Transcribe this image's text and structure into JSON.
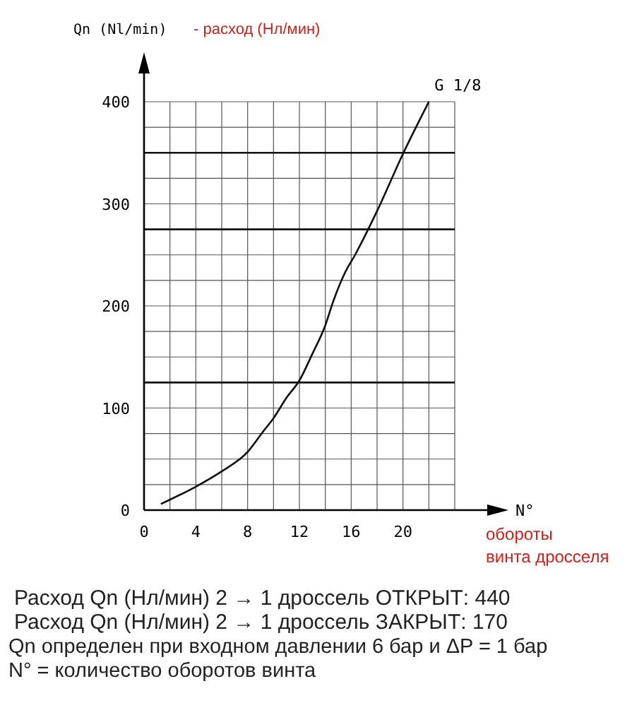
{
  "chart_data": {
    "type": "line",
    "ylabel": "Qn (Nl/min)",
    "xlabel": "N°",
    "annotations": [
      "- расход (Нл/мин)",
      "обороты винта дросселя",
      "Расход Qn (Нл/мин) 2 → 1 дроссель ОТКРЫТ: 440",
      "Расход Qn (Нл/мин) 2 → 1 дроссель ЗАКРЫТ: 170",
      "Qn определен при входном давлении 6 бар и ΔP = 1 бар",
      "N° = количество оборотов винта"
    ],
    "x": [
      1.3,
      4,
      6,
      8,
      9.2,
      10,
      11,
      12,
      13,
      14,
      14.6,
      15.5,
      16.3,
      18,
      20,
      22
    ],
    "series": [
      {
        "name": "G 1/8",
        "color": "#111111",
        "values": [
          6,
          23,
          38,
          57,
          77,
          90,
          110,
          127,
          153,
          181,
          204,
          232,
          250,
          293,
          349,
          400
        ]
      }
    ],
    "xlim": [
      0,
      24
    ],
    "ylim": [
      0,
      400
    ],
    "xticks": [
      0,
      {
        "value": 2,
        "label": null
      },
      4,
      {
        "value": 6,
        "label": null
      },
      8,
      {
        "value": 10,
        "label": null
      },
      12,
      {
        "value": 14,
        "label": null
      },
      16,
      {
        "value": 18,
        "label": null
      },
      20,
      {
        "value": 22,
        "label": null
      },
      {
        "value": 24,
        "label": null
      }
    ],
    "yticks": [
      0,
      {
        "value": 25,
        "label": null
      },
      {
        "value": 50,
        "label": null
      },
      {
        "value": 75,
        "label": null
      },
      100,
      {
        "value": 150,
        "label": null
      },
      {
        "value": 175,
        "label": null
      },
      200,
      {
        "value": 225,
        "label": null
      },
      {
        "value": 250,
        "label": null
      },
      300,
      {
        "value": 325,
        "label": null
      },
      {
        "value": 375,
        "label": null
      },
      400
    ],
    "ref_lines": [
      {
        "axis": "y",
        "value": 125,
        "color": "#111111"
      },
      {
        "axis": "y",
        "value": 275,
        "color": "#111111"
      },
      {
        "axis": "y",
        "value": 350,
        "color": "#111111"
      }
    ],
    "grid": true,
    "marker": "none",
    "line_style": "solid"
  }
}
